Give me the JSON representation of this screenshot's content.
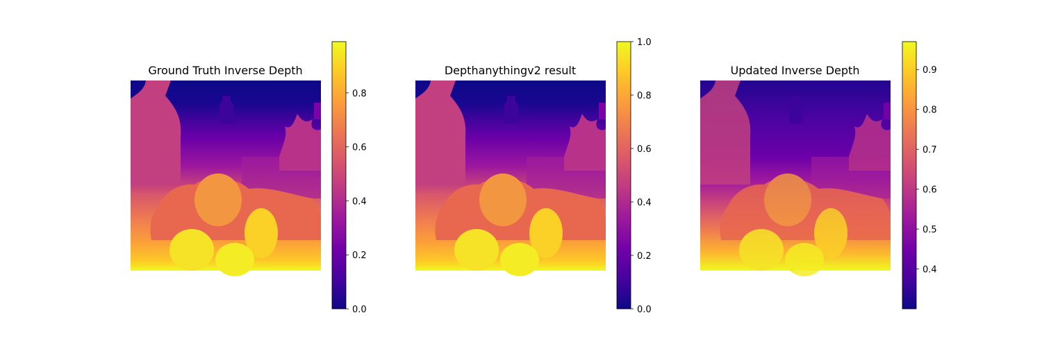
{
  "colormap": {
    "name": "plasma",
    "stops": [
      "#0d0887",
      "#46039f",
      "#7201a8",
      "#9c179e",
      "#bd3786",
      "#d8576b",
      "#ed7953",
      "#fb9f3a",
      "#fdca26",
      "#f0f921"
    ]
  },
  "panels": [
    {
      "title": "Ground Truth Inverse Depth",
      "colorbar": {
        "min": 0.0,
        "max": 0.99,
        "ticks": [
          "0.0",
          "0.2",
          "0.4",
          "0.6",
          "0.8"
        ]
      }
    },
    {
      "title": "Depthanythingv2 result",
      "colorbar": {
        "min": 0.0,
        "max": 1.0,
        "ticks": [
          "0.0",
          "0.2",
          "0.4",
          "0.6",
          "0.8",
          "1.0"
        ]
      }
    },
    {
      "title": "Updated Inverse Depth",
      "colorbar": {
        "min": 0.3,
        "max": 0.97,
        "ticks": [
          "0.4",
          "0.5",
          "0.6",
          "0.7",
          "0.8",
          "0.9"
        ]
      }
    }
  ]
}
